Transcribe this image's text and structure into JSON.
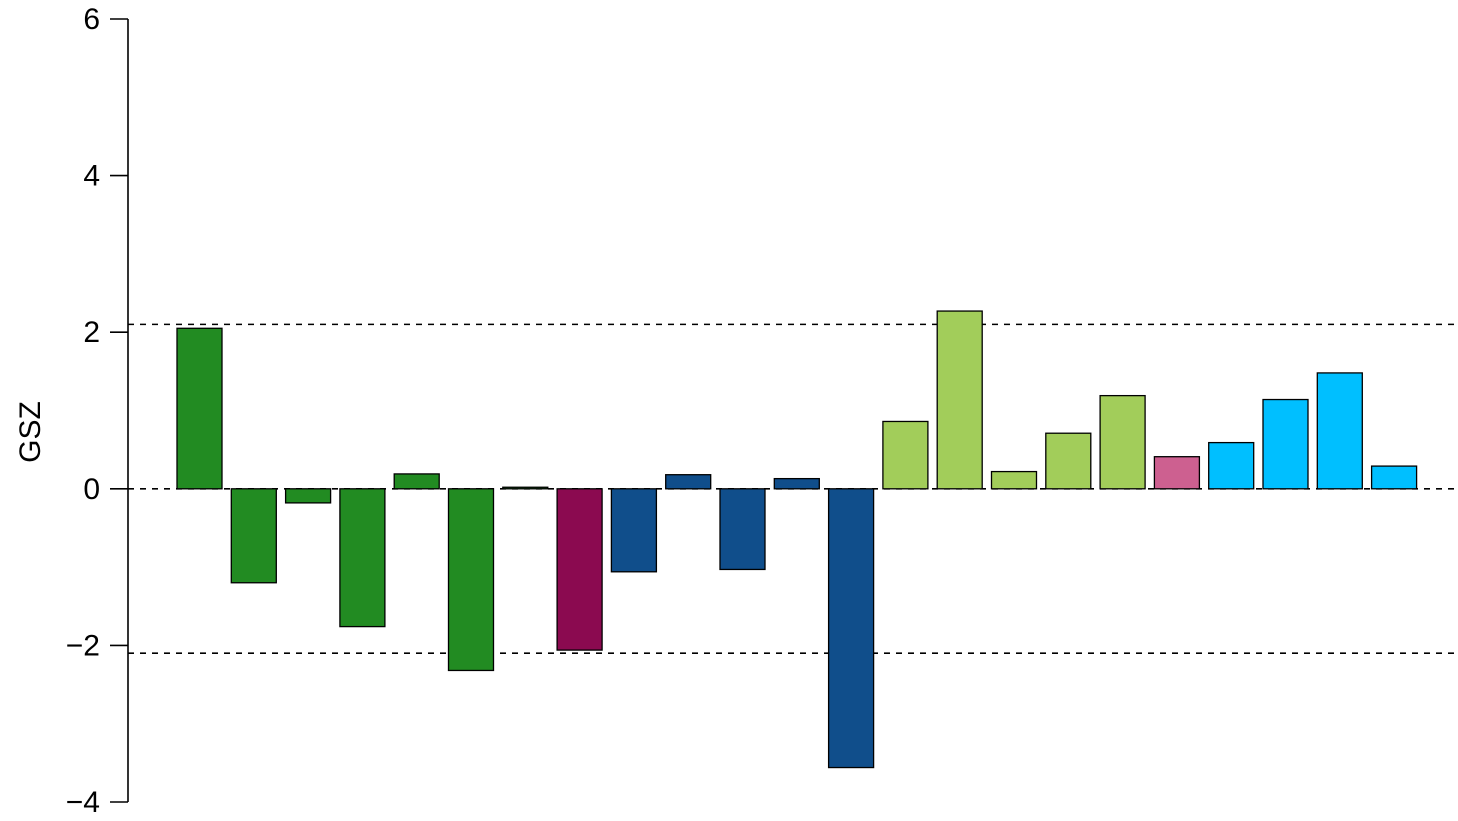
{
  "chart_data": {
    "type": "bar",
    "title": "",
    "xlabel": "",
    "ylabel": "GSZ",
    "ylim": [
      -4,
      6
    ],
    "yticks": [
      -4,
      -2,
      0,
      2,
      4,
      6
    ],
    "ytick_labels": [
      "−4",
      "−2",
      "0",
      "2",
      "4",
      "6"
    ],
    "grid": false,
    "legend": "none",
    "reference_lines": [
      2.1,
      0,
      -2.1
    ],
    "values": [
      2.05,
      -1.2,
      -0.18,
      -1.76,
      0.19,
      -2.32,
      0.02,
      -2.06,
      -1.06,
      0.18,
      -1.03,
      0.13,
      -3.56,
      0.86,
      2.27,
      0.22,
      0.71,
      1.19,
      0.41,
      0.59,
      1.14,
      1.48,
      0.29
    ],
    "colors": [
      "#228B22",
      "#228B22",
      "#228B22",
      "#228B22",
      "#228B22",
      "#228B22",
      "#228B22",
      "#8B0A50",
      "#104E8B",
      "#104E8B",
      "#104E8B",
      "#104E8B",
      "#104E8B",
      "#A2CD5A",
      "#A2CD5A",
      "#A2CD5A",
      "#A2CD5A",
      "#A2CD5A",
      "#CD6090",
      "#00BFFF",
      "#00BFFF",
      "#00BFFF",
      "#00BFFF"
    ]
  }
}
